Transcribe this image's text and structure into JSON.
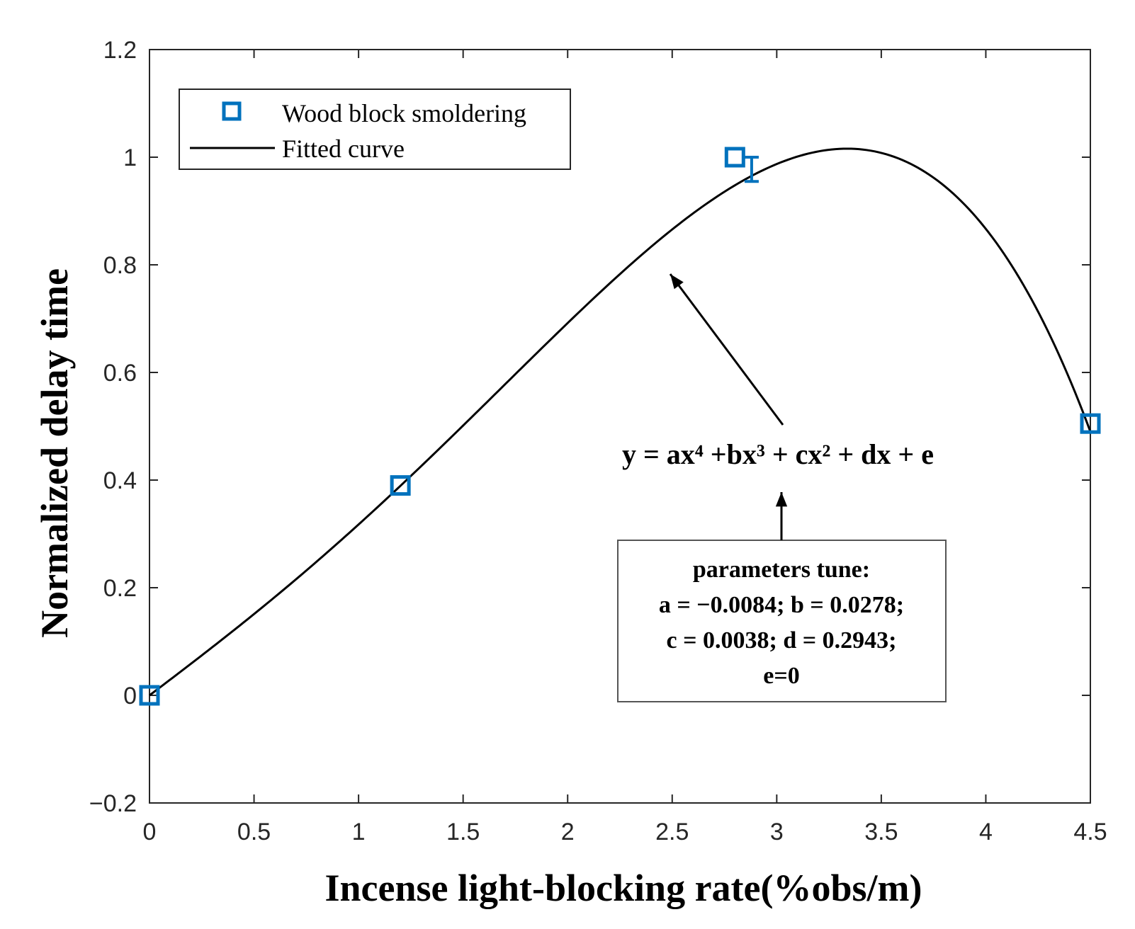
{
  "chart_data": {
    "type": "scatter",
    "xlabel": "Incense light-blocking rate(%obs/m)",
    "ylabel": "Normalized delay time",
    "xlim": [
      0,
      4.5
    ],
    "ylim": [
      -0.2,
      1.2
    ],
    "x_ticks": [
      "0",
      "0.5",
      "1",
      "1.5",
      "2",
      "2.5",
      "3",
      "3.5",
      "4",
      "4.5"
    ],
    "y_ticks": [
      "−0.2",
      "0",
      "0.2",
      "0.4",
      "0.6",
      "0.8",
      "1",
      "1.2"
    ],
    "x_tick_values": [
      0,
      0.5,
      1,
      1.5,
      2,
      2.5,
      3,
      3.5,
      4,
      4.5
    ],
    "y_tick_values": [
      -0.2,
      0,
      0.2,
      0.4,
      0.6,
      0.8,
      1,
      1.2
    ],
    "series": [
      {
        "name": "Wood block smoldering",
        "kind": "markers",
        "marker": "square",
        "color": "#0072BD",
        "x": [
          0,
          1.2,
          2.8,
          4.5
        ],
        "y": [
          0,
          0.39,
          1.0,
          0.505
        ]
      },
      {
        "name": "Fitted curve",
        "kind": "line",
        "color": "#000000",
        "coefficients": {
          "a": -0.0084,
          "b": 0.0278,
          "c": 0.0038,
          "d": 0.2943,
          "e": 0
        },
        "x_range": [
          0,
          4.5
        ]
      }
    ],
    "error_bars": [
      {
        "x": 2.88,
        "y": 0.975,
        "low": 0.955,
        "high": 1.0,
        "color": "#0072BD"
      }
    ],
    "legend": {
      "position": "top-left",
      "entries": [
        "Wood block smoldering",
        "Fitted curve"
      ]
    },
    "annotations": {
      "equation": "y = ax⁴ +bx³ + cx² + dx + e",
      "params_title": "parameters tune:",
      "params_lines": [
        "a = −0.0084; b = 0.0278;",
        "c = 0.0038; d = 0.2943;",
        "e=0"
      ]
    },
    "grid": false
  }
}
